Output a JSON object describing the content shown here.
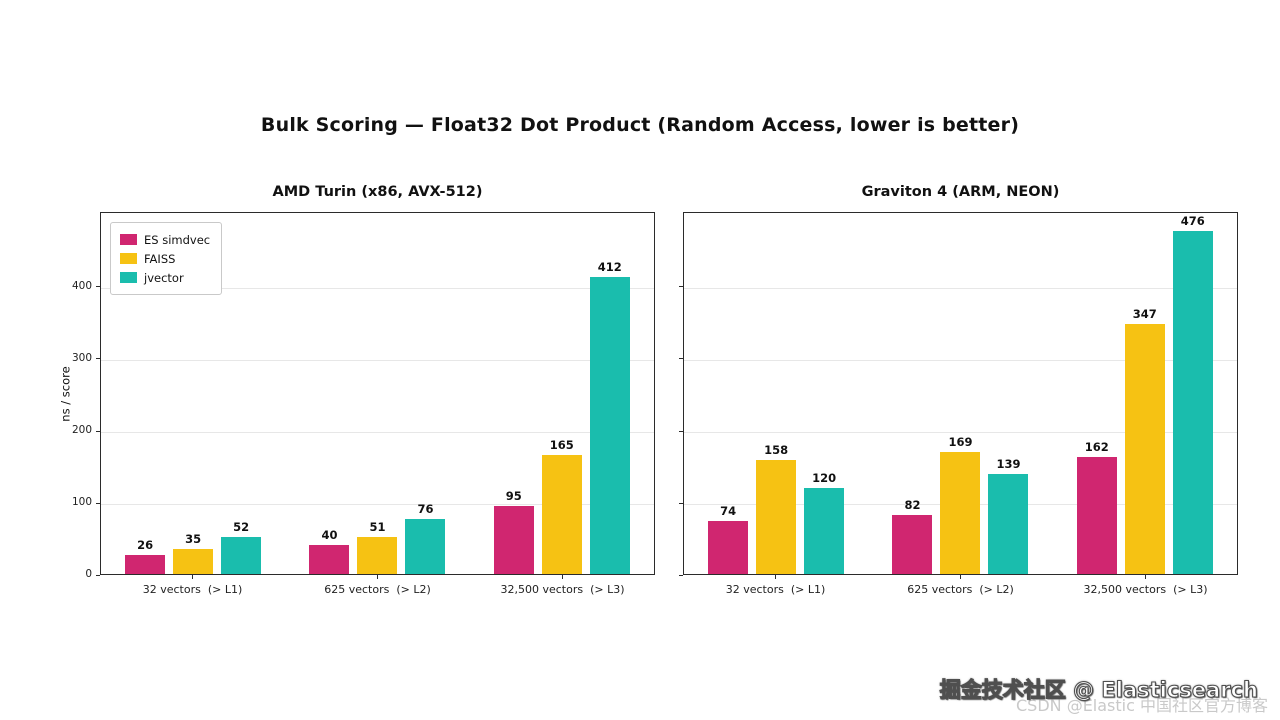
{
  "page": {
    "title": "Bulk Scoring — Float32 Dot Product (Random Access, lower is better)"
  },
  "chart_data": [
    {
      "type": "bar",
      "title": "AMD Turin (x86, AVX-512)",
      "ylabel": "ns / score",
      "ylim": [
        0,
        504
      ],
      "yticks": [
        0,
        100,
        200,
        300,
        400
      ],
      "grid": true,
      "legend": true,
      "legend_position": "upper left",
      "show_ytick_labels": true,
      "categories": [
        "32 vectors  (> L1)",
        "625 vectors  (> L2)",
        "32,500 vectors  (> L3)"
      ],
      "series": [
        {
          "name": "ES simdvec",
          "color": "#d02670",
          "values": [
            26,
            40,
            95
          ]
        },
        {
          "name": "FAISS",
          "color": "#f6c213",
          "values": [
            35,
            51,
            165
          ]
        },
        {
          "name": "jvector",
          "color": "#1abdad",
          "values": [
            52,
            76,
            412
          ]
        }
      ]
    },
    {
      "type": "bar",
      "title": "Graviton 4 (ARM, NEON)",
      "ylabel": "",
      "ylim": [
        0,
        504
      ],
      "yticks": [
        0,
        100,
        200,
        300,
        400
      ],
      "grid": true,
      "legend": false,
      "legend_position": "none",
      "show_ytick_labels": false,
      "categories": [
        "32 vectors  (> L1)",
        "625 vectors  (> L2)",
        "32,500 vectors  (> L3)"
      ],
      "series": [
        {
          "name": "ES simdvec",
          "color": "#d02670",
          "values": [
            74,
            82,
            162
          ]
        },
        {
          "name": "FAISS",
          "color": "#f6c213",
          "values": [
            158,
            169,
            347
          ]
        },
        {
          "name": "jvector",
          "color": "#1abdad",
          "values": [
            120,
            139,
            476
          ]
        }
      ]
    }
  ],
  "watermark": {
    "primary": "掘金技术社区 @ Elasticsearch",
    "secondary": "CSDN @Elastic 中国社区官方博客"
  }
}
